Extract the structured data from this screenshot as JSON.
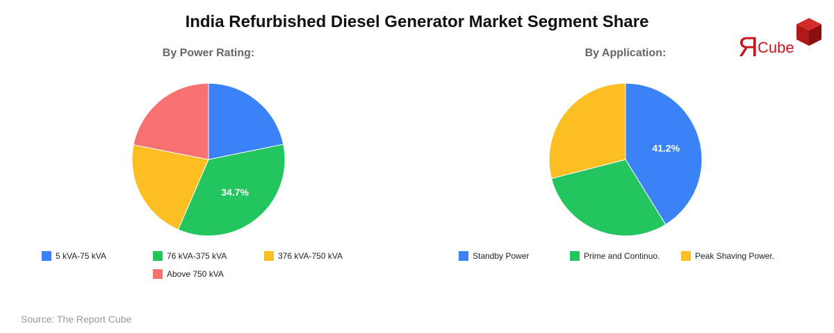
{
  "header": {
    "title": "India Refurbished Diesel Generator Market Segment Share",
    "logo": {
      "mark": "Я",
      "text": "Cube",
      "icon": "red-cube-icon",
      "color": "#c8161d"
    }
  },
  "charts": {
    "power": {
      "subtitle": "By Power Rating:"
    },
    "application": {
      "subtitle": "By Application:"
    }
  },
  "chart_data": [
    {
      "type": "pie",
      "title": "By Power Rating:",
      "categories": [
        "5 kVA-75 kVA",
        "76 kVA-375 kVA",
        "376 kVA-750 kVA",
        "Above 750 kVA"
      ],
      "values": [
        21.8,
        34.7,
        21.6,
        21.9
      ],
      "colors": [
        "#3b82f6",
        "#22c55e",
        "#fbbf24",
        "#f87171"
      ],
      "data_labels": [
        null,
        "34.7%",
        null,
        null
      ],
      "start_angle": "top, clockwise",
      "legend_position": "bottom"
    },
    {
      "type": "pie",
      "title": "By Application:",
      "categories": [
        "Standby Power",
        "Prime and Continuo.",
        "Peak Shaving Power."
      ],
      "values": [
        41.2,
        29.8,
        29.0
      ],
      "colors": [
        "#3b82f6",
        "#22c55e",
        "#fbbf24"
      ],
      "data_labels": [
        "41.2%",
        null,
        null
      ],
      "start_angle": "top, clockwise",
      "legend_position": "bottom"
    }
  ],
  "footer": {
    "source": "Source: The Report Cube"
  }
}
